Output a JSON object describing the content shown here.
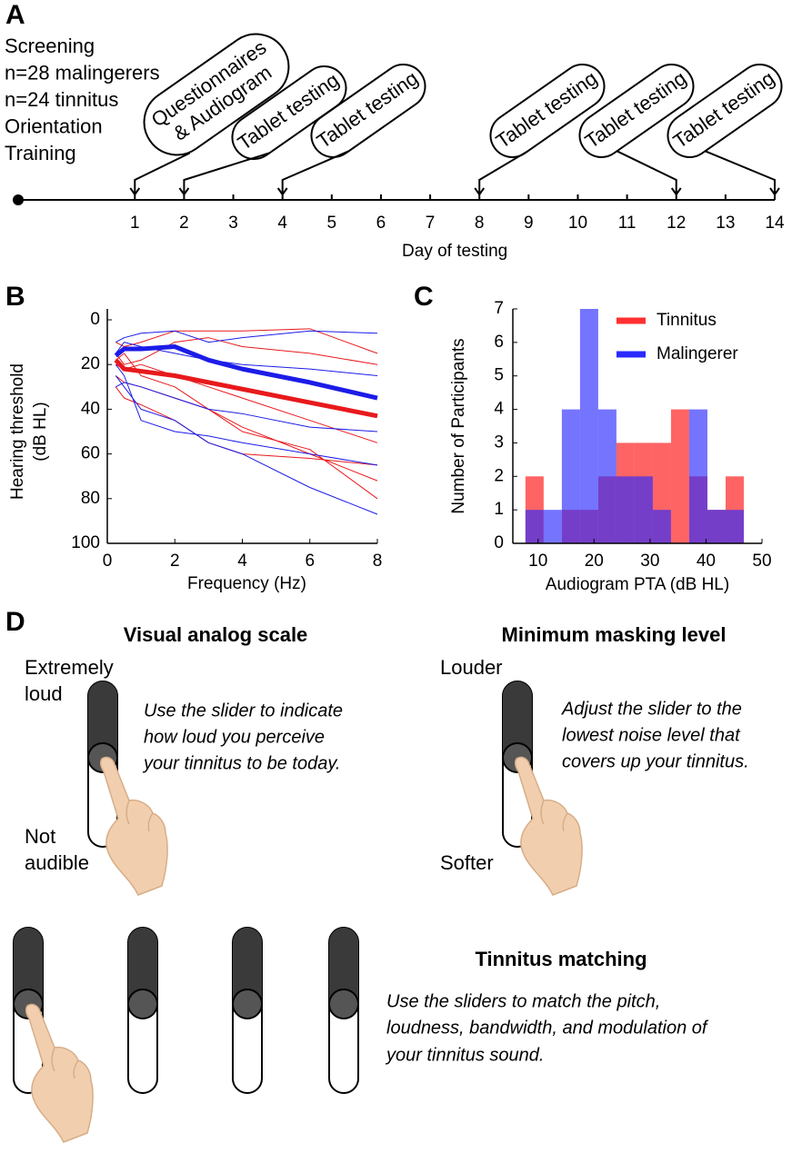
{
  "panel_labels": [
    "A",
    "B",
    "C",
    "D"
  ],
  "chart_data": [
    {
      "type": "timeline",
      "notes": [
        "Screening",
        "n=28 malingerers",
        "n=24 tinnitus",
        "Orientation",
        "Training"
      ],
      "events": [
        {
          "label": [
            "Questionnaires",
            "& Audiogram"
          ],
          "day": 1
        },
        {
          "label": [
            "Tablet testing"
          ],
          "day": 2
        },
        {
          "label": [
            "Tablet testing"
          ],
          "day": 4
        },
        {
          "label": [
            "Tablet testing"
          ],
          "day": 8
        },
        {
          "label": [
            "Tablet testing"
          ],
          "day": 12
        },
        {
          "label": [
            "Tablet testing"
          ],
          "day": 14
        }
      ],
      "xlabel": "Day of testing",
      "xlim": [
        -1.37,
        14
      ],
      "xticks": [
        1,
        2,
        3,
        4,
        5,
        6,
        7,
        8,
        9,
        10,
        11,
        12,
        13,
        14
      ]
    },
    {
      "type": "line",
      "xlabel": "Frequency (Hz)",
      "ylabel": [
        "Hearing threshold",
        "(dB HL)"
      ],
      "x": [
        0.25,
        0.5,
        1,
        2,
        3,
        4,
        6,
        8
      ],
      "xlim": [
        0,
        8
      ],
      "xticks": [
        0,
        2,
        4,
        6,
        8
      ],
      "ylim": [
        0,
        100
      ],
      "yticks": [
        0,
        20,
        40,
        60,
        80,
        100
      ],
      "y_reversed": true,
      "series": [
        {
          "color": "#e8191c",
          "width": 1,
          "values": [
            15,
            20,
            18,
            10,
            8,
            12,
            15,
            20
          ]
        },
        {
          "color": "#e8191c",
          "width": 1,
          "values": [
            30,
            35,
            38,
            45,
            55,
            60,
            62,
            65
          ]
        },
        {
          "color": "#e8191c",
          "width": 1,
          "values": [
            20,
            22,
            20,
            25,
            30,
            35,
            45,
            55
          ]
        },
        {
          "color": "#e8191c",
          "width": 1,
          "values": [
            10,
            12,
            10,
            5,
            5,
            5,
            4,
            15
          ]
        },
        {
          "color": "#e8191c",
          "width": 1,
          "values": [
            25,
            28,
            30,
            35,
            40,
            48,
            60,
            72
          ]
        },
        {
          "color": "#e8191c",
          "width": 1,
          "values": [
            18,
            15,
            25,
            30,
            40,
            50,
            58,
            80
          ]
        },
        {
          "color": "#1c1ce8",
          "width": 1,
          "values": [
            20,
            25,
            45,
            50,
            52,
            55,
            60,
            65
          ]
        },
        {
          "color": "#1c1ce8",
          "width": 1,
          "values": [
            15,
            10,
            12,
            15,
            18,
            20,
            22,
            25
          ]
        },
        {
          "color": "#1c1ce8",
          "width": 1,
          "values": [
            25,
            30,
            40,
            45,
            55,
            60,
            75,
            87
          ]
        },
        {
          "color": "#1c1ce8",
          "width": 1,
          "values": [
            10,
            8,
            6,
            5,
            10,
            8,
            5,
            6
          ]
        },
        {
          "color": "#1c1ce8",
          "width": 1,
          "values": [
            30,
            28,
            30,
            35,
            40,
            42,
            48,
            50
          ]
        },
        {
          "color": "#e8191c",
          "width": 5,
          "values": [
            18,
            22,
            23,
            25,
            28,
            31,
            37,
            43
          ]
        },
        {
          "color": "#1c1ce8",
          "width": 5,
          "values": [
            16,
            13,
            13,
            12,
            18,
            22,
            28,
            35
          ]
        }
      ]
    },
    {
      "type": "histogram",
      "xlabel": "Audiogram PTA (dB HL)",
      "ylabel": "Number of Participants",
      "bins": [
        7.75,
        11,
        14.25,
        17.5,
        20.75,
        24,
        27.25,
        30.5,
        33.75,
        37,
        40.25,
        43.5,
        46.75
      ],
      "xlim": [
        5.5,
        50
      ],
      "xticks": [
        10,
        20,
        30,
        40,
        50
      ],
      "ylim": [
        0,
        7
      ],
      "yticks": [
        0,
        1,
        2,
        3,
        4,
        5,
        6,
        7
      ],
      "legend": "upper right",
      "series": [
        {
          "name": "Tinnitus",
          "color": "#ff3030",
          "opacity": 0.75,
          "values": [
            2,
            0,
            1,
            1,
            2,
            3,
            3,
            3,
            4,
            2,
            1,
            2
          ]
        },
        {
          "name": "Malingerer",
          "color": "#2a2aff",
          "opacity": 0.65,
          "values": [
            1,
            1,
            4,
            7,
            4,
            2,
            2,
            1,
            0,
            4,
            1,
            1
          ]
        }
      ]
    }
  ],
  "panel_d": {
    "vas": {
      "title": "Visual analog scale",
      "top_label": [
        "Extremely",
        "loud"
      ],
      "bottom_label": [
        "Not",
        "audible"
      ],
      "instruction": [
        "Use the slider to indicate",
        "how loud you perceive",
        "your tinnitus to be today."
      ]
    },
    "mml": {
      "title": "Minimum masking level",
      "top_label": [
        "Louder"
      ],
      "bottom_label": [
        "Softer"
      ],
      "instruction": [
        "Adjust the slider to the",
        "lowest noise level that",
        "covers up your tinnitus."
      ]
    },
    "matching": {
      "title": "Tinnitus matching",
      "instruction": [
        "Use the sliders to match the pitch,",
        "loudness, bandwidth, and modulation of",
        "your tinnitus sound."
      ]
    }
  }
}
